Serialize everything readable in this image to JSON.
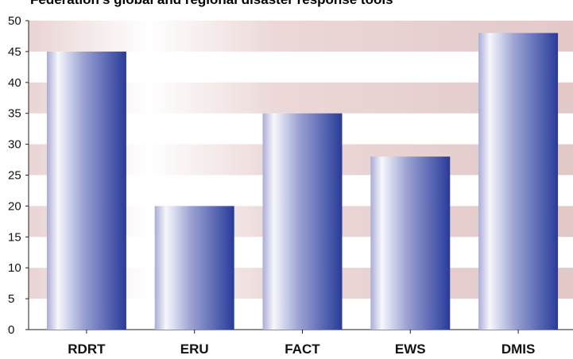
{
  "chart_data": {
    "type": "bar",
    "title": "Federation's global and regional disaster response tools",
    "xlabel": "",
    "ylabel": "",
    "categories": [
      "RDRT",
      "ERU",
      "FACT",
      "EWS",
      "DMIS"
    ],
    "values": [
      45,
      20,
      35,
      28,
      48
    ],
    "ylim": [
      0,
      50
    ],
    "yticks": [
      0,
      5,
      10,
      15,
      20,
      25,
      30,
      35,
      40,
      45,
      50
    ],
    "grid": "alternating horizontal bands",
    "legend": "none",
    "colors": {
      "band": "#e6cccc",
      "bar_light": "#f3f4fb",
      "bar_dark": "#283b9a",
      "axis": "#222222"
    }
  }
}
